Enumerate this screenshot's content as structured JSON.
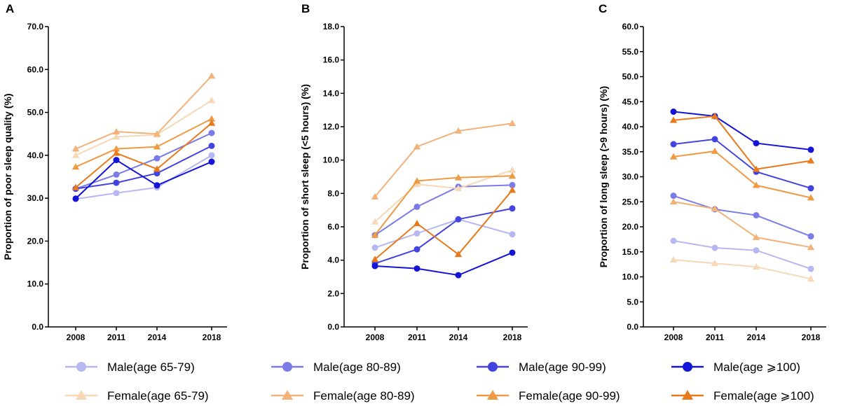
{
  "series_styles": [
    {
      "name": "Male(age 65-79)",
      "color": "#b7b7f2",
      "marker": "circle"
    },
    {
      "name": "Male(age 80-89)",
      "color": "#7b7be8",
      "marker": "circle"
    },
    {
      "name": "Male(age 90-99)",
      "color": "#4343e0",
      "marker": "circle"
    },
    {
      "name": "Male(age ⩾100)",
      "color": "#1414d6",
      "marker": "circle"
    },
    {
      "name": "Female(age 65-79)",
      "color": "#f6d8b6",
      "marker": "triangle"
    },
    {
      "name": "Female(age 80-89)",
      "color": "#f2b27a",
      "marker": "triangle"
    },
    {
      "name": "Female(age 90-99)",
      "color": "#ef9a44",
      "marker": "triangle"
    },
    {
      "name": "Female(age ⩾100)",
      "color": "#e87a1c",
      "marker": "triangle"
    }
  ],
  "chart_data": [
    {
      "panel": "A",
      "type": "line",
      "title": "",
      "xlabel": "",
      "ylabel": "Proportion of poor sleep quality (%)",
      "x": [
        2008,
        2011,
        2014,
        2018
      ],
      "x_tick_labels": [
        "2008",
        "2011",
        "2014",
        "2018"
      ],
      "ylim": [
        0,
        70
      ],
      "y_ticks": [
        0,
        10,
        20,
        30,
        40,
        50,
        60,
        70
      ],
      "y_tick_labels": [
        "0.0",
        "10.0",
        "20.0",
        "30.0",
        "40.0",
        "50.0",
        "60.0",
        "70.0"
      ],
      "series": [
        {
          "name": "Male(age 65-79)",
          "values": [
            29.8,
            31.2,
            32.5,
            40.0
          ]
        },
        {
          "name": "Male(age 80-89)",
          "values": [
            32.2,
            35.5,
            39.3,
            45.2
          ]
        },
        {
          "name": "Male(age 90-99)",
          "values": [
            32.2,
            33.6,
            35.8,
            42.2
          ]
        },
        {
          "name": "Male(age ⩾100)",
          "values": [
            29.9,
            38.9,
            33.0,
            38.5
          ]
        },
        {
          "name": "Female(age 65-79)",
          "values": [
            40.0,
            44.3,
            44.8,
            52.8
          ]
        },
        {
          "name": "Female(age 80-89)",
          "values": [
            41.5,
            45.5,
            45.0,
            58.5
          ]
        },
        {
          "name": "Female(age 90-99)",
          "values": [
            37.3,
            41.5,
            42.0,
            48.5
          ]
        },
        {
          "name": "Female(age ⩾100)",
          "values": [
            32.5,
            40.5,
            36.8,
            47.5
          ]
        }
      ]
    },
    {
      "panel": "B",
      "type": "line",
      "title": "",
      "xlabel": "",
      "ylabel": "Proportion of short sleep (<5 hours) (%)",
      "x": [
        2008,
        2011,
        2014,
        2018
      ],
      "x_tick_labels": [
        "2008",
        "2011",
        "2014",
        "2018"
      ],
      "ylim": [
        0,
        18
      ],
      "y_ticks": [
        0,
        2,
        4,
        6,
        8,
        10,
        12,
        14,
        16,
        18
      ],
      "y_tick_labels": [
        "0.0",
        "2.0",
        "4.0",
        "6.0",
        "8.0",
        "10.0",
        "12.0",
        "14.0",
        "16.0",
        "18.0"
      ],
      "series": [
        {
          "name": "Male(age 65-79)",
          "values": [
            4.75,
            5.6,
            6.45,
            5.55
          ]
        },
        {
          "name": "Male(age 80-89)",
          "values": [
            5.5,
            7.2,
            8.4,
            8.5
          ]
        },
        {
          "name": "Male(age 90-99)",
          "values": [
            3.8,
            4.65,
            6.45,
            7.1
          ]
        },
        {
          "name": "Male(age ⩾100)",
          "values": [
            3.65,
            3.5,
            3.1,
            4.45
          ]
        },
        {
          "name": "Female(age 65-79)",
          "values": [
            6.3,
            8.55,
            8.3,
            9.4
          ]
        },
        {
          "name": "Female(age 80-89)",
          "values": [
            7.8,
            10.8,
            11.75,
            12.2
          ]
        },
        {
          "name": "Female(age 90-99)",
          "values": [
            5.5,
            8.75,
            8.95,
            9.05
          ]
        },
        {
          "name": "Female(age ⩾100)",
          "values": [
            4.05,
            6.2,
            4.35,
            8.2
          ]
        }
      ]
    },
    {
      "panel": "C",
      "type": "line",
      "title": "",
      "xlabel": "",
      "ylabel": "Proportion of long sleep (>9 hours) (%)",
      "x": [
        2008,
        2011,
        2014,
        2018
      ],
      "x_tick_labels": [
        "2008",
        "2011",
        "2014",
        "2018"
      ],
      "ylim": [
        0,
        60
      ],
      "y_ticks": [
        0,
        5,
        10,
        15,
        20,
        25,
        30,
        35,
        40,
        45,
        50,
        55,
        60
      ],
      "y_tick_labels": [
        "0.0",
        "5.0",
        "10.0",
        "15.0",
        "20.0",
        "25.0",
        "30.0",
        "35.0",
        "40.0",
        "45.0",
        "50.0",
        "55.0",
        "60.0"
      ],
      "series": [
        {
          "name": "Male(age 65-79)",
          "values": [
            17.2,
            15.8,
            15.3,
            11.6
          ]
        },
        {
          "name": "Male(age 80-89)",
          "values": [
            26.2,
            23.5,
            22.3,
            18.1
          ]
        },
        {
          "name": "Male(age 90-99)",
          "values": [
            36.5,
            37.5,
            31.0,
            27.7
          ]
        },
        {
          "name": "Male(age ⩾100)",
          "values": [
            43.0,
            42.1,
            36.7,
            35.4
          ]
        },
        {
          "name": "Female(age 65-79)",
          "values": [
            13.4,
            12.7,
            12.0,
            9.6
          ]
        },
        {
          "name": "Female(age 80-89)",
          "values": [
            25.0,
            23.6,
            17.9,
            15.9
          ]
        },
        {
          "name": "Female(age 90-99)",
          "values": [
            34.0,
            35.1,
            28.3,
            25.8
          ]
        },
        {
          "name": "Female(age ⩾100)",
          "values": [
            41.3,
            42.1,
            31.5,
            33.2
          ]
        }
      ]
    }
  ]
}
